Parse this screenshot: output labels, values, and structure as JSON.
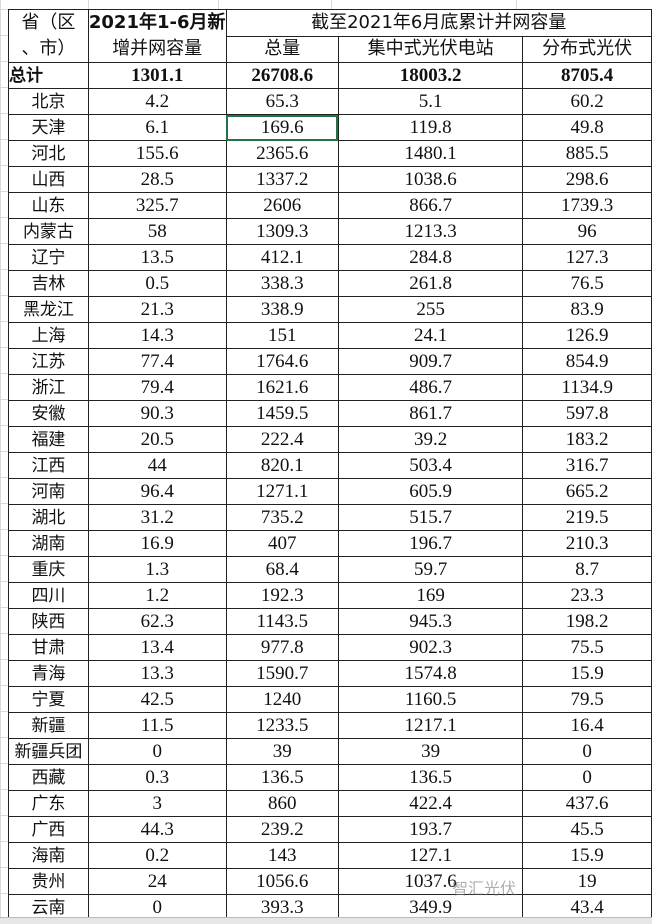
{
  "header": {
    "col1": "省（区、市）",
    "col1_line1": "省（区",
    "col1_line2": "、市）",
    "col2_line1": "2021年1-6月新",
    "col2_line2": "增并网容量",
    "group": "截至2021年6月底累计并网容量",
    "col3": "总量",
    "col4": "集中式光伏电站",
    "col5": "分布式光伏"
  },
  "total": {
    "label": "总计",
    "new": "1301.1",
    "total": "26708.6",
    "central": "18003.2",
    "distributed": "8705.4"
  },
  "rows": [
    [
      "北京",
      "4.2",
      "65.3",
      "5.1",
      "60.2"
    ],
    [
      "天津",
      "6.1",
      "169.6",
      "119.8",
      "49.8"
    ],
    [
      "河北",
      "155.6",
      "2365.6",
      "1480.1",
      "885.5"
    ],
    [
      "山西",
      "28.5",
      "1337.2",
      "1038.6",
      "298.6"
    ],
    [
      "山东",
      "325.7",
      "2606",
      "866.7",
      "1739.3"
    ],
    [
      "内蒙古",
      "58",
      "1309.3",
      "1213.3",
      "96"
    ],
    [
      "辽宁",
      "13.5",
      "412.1",
      "284.8",
      "127.3"
    ],
    [
      "吉林",
      "0.5",
      "338.3",
      "261.8",
      "76.5"
    ],
    [
      "黑龙江",
      "21.3",
      "338.9",
      "255",
      "83.9"
    ],
    [
      "上海",
      "14.3",
      "151",
      "24.1",
      "126.9"
    ],
    [
      "江苏",
      "77.4",
      "1764.6",
      "909.7",
      "854.9"
    ],
    [
      "浙江",
      "79.4",
      "1621.6",
      "486.7",
      "1134.9"
    ],
    [
      "安徽",
      "90.3",
      "1459.5",
      "861.7",
      "597.8"
    ],
    [
      "福建",
      "20.5",
      "222.4",
      "39.2",
      "183.2"
    ],
    [
      "江西",
      "44",
      "820.1",
      "503.4",
      "316.7"
    ],
    [
      "河南",
      "96.4",
      "1271.1",
      "605.9",
      "665.2"
    ],
    [
      "湖北",
      "31.2",
      "735.2",
      "515.7",
      "219.5"
    ],
    [
      "湖南",
      "16.9",
      "407",
      "196.7",
      "210.3"
    ],
    [
      "重庆",
      "1.3",
      "68.4",
      "59.7",
      "8.7"
    ],
    [
      "四川",
      "1.2",
      "192.3",
      "169",
      "23.3"
    ],
    [
      "陕西",
      "62.3",
      "1143.5",
      "945.3",
      "198.2"
    ],
    [
      "甘肃",
      "13.4",
      "977.8",
      "902.3",
      "75.5"
    ],
    [
      "青海",
      "13.3",
      "1590.7",
      "1574.8",
      "15.9"
    ],
    [
      "宁夏",
      "42.5",
      "1240",
      "1160.5",
      "79.5"
    ],
    [
      "新疆",
      "11.5",
      "1233.5",
      "1217.1",
      "16.4"
    ],
    [
      "新疆兵团",
      "0",
      "39",
      "39",
      "0"
    ],
    [
      "西藏",
      "0.3",
      "136.5",
      "136.5",
      "0"
    ],
    [
      "广东",
      "3",
      "860",
      "422.4",
      "437.6"
    ],
    [
      "广西",
      "44.3",
      "239.2",
      "193.7",
      "45.5"
    ],
    [
      "海南",
      "0.2",
      "143",
      "127.1",
      "15.9"
    ],
    [
      "贵州",
      "24",
      "1056.6",
      "1037.6",
      "19"
    ],
    [
      "云南",
      "0",
      "393.3",
      "349.9",
      "43.4"
    ]
  ],
  "selected_cell": {
    "row": 1,
    "col": 2
  },
  "watermark": "智汇光伏",
  "colors": {
    "selection": "#217346",
    "gridline": "#d9d9d9"
  }
}
